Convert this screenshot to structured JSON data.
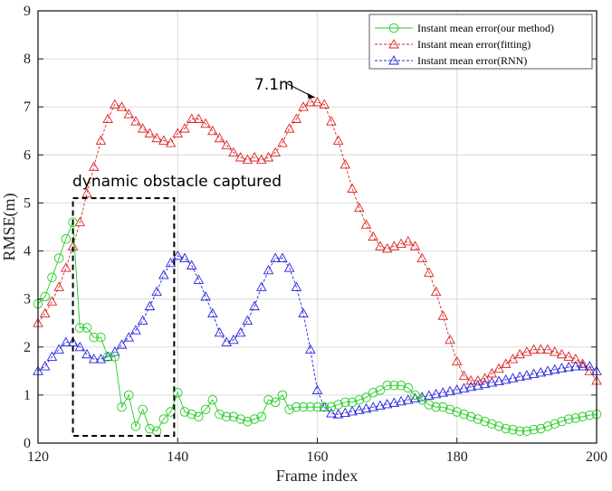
{
  "chart_data": {
    "type": "line",
    "xlabel": "Frame index",
    "ylabel": "RMSE(m)",
    "xlim": [
      120,
      200
    ],
    "ylim": [
      0,
      9
    ],
    "xticks": [
      120,
      140,
      160,
      180,
      200
    ],
    "yticks": [
      0,
      1,
      2,
      3,
      4,
      5,
      6,
      7,
      8,
      9
    ],
    "grid": true,
    "legend_position": "top-right",
    "x_start": 120,
    "series": [
      {
        "name": "Instant mean error(our method)",
        "color": "#22cc22",
        "marker": "circle",
        "line": "solid",
        "values": [
          2.9,
          3.05,
          3.45,
          3.85,
          4.25,
          4.6,
          2.4,
          2.4,
          2.2,
          2.2,
          1.8,
          1.8,
          0.75,
          1.0,
          0.35,
          0.7,
          0.3,
          0.25,
          0.5,
          0.65,
          1.05,
          0.65,
          0.6,
          0.55,
          0.7,
          0.9,
          0.6,
          0.55,
          0.55,
          0.5,
          0.45,
          0.5,
          0.55,
          0.9,
          0.85,
          1.0,
          0.7,
          0.75,
          0.75,
          0.75,
          0.75,
          0.75,
          0.75,
          0.8,
          0.85,
          0.85,
          0.9,
          0.95,
          1.05,
          1.1,
          1.2,
          1.2,
          1.2,
          1.15,
          1.0,
          0.9,
          0.8,
          0.75,
          0.75,
          0.7,
          0.65,
          0.6,
          0.55,
          0.5,
          0.45,
          0.4,
          0.35,
          0.3,
          0.28,
          0.25,
          0.25,
          0.28,
          0.3,
          0.35,
          0.4,
          0.45,
          0.5,
          0.52,
          0.55,
          0.58,
          0.6
        ]
      },
      {
        "name": "Instant mean error(fitting)",
        "color": "#dd2222",
        "marker": "triangle",
        "line": "dashed",
        "values": [
          2.5,
          2.7,
          2.95,
          3.25,
          3.65,
          4.1,
          4.6,
          5.2,
          5.75,
          6.3,
          6.75,
          7.05,
          7.0,
          6.85,
          6.7,
          6.55,
          6.45,
          6.35,
          6.3,
          6.25,
          6.45,
          6.55,
          6.75,
          6.75,
          6.65,
          6.5,
          6.35,
          6.2,
          6.05,
          5.95,
          5.9,
          5.95,
          5.9,
          5.95,
          6.05,
          6.25,
          6.55,
          6.75,
          7.0,
          7.1,
          7.1,
          7.05,
          6.7,
          6.3,
          5.8,
          5.3,
          4.9,
          4.55,
          4.3,
          4.1,
          4.05,
          4.1,
          4.15,
          4.2,
          4.1,
          3.85,
          3.55,
          3.15,
          2.65,
          2.15,
          1.7,
          1.4,
          1.3,
          1.3,
          1.35,
          1.45,
          1.55,
          1.65,
          1.75,
          1.85,
          1.9,
          1.95,
          1.95,
          1.95,
          1.9,
          1.85,
          1.8,
          1.75,
          1.65,
          1.5,
          1.3
        ]
      },
      {
        "name": "Instant mean error(RNN)",
        "color": "#2222dd",
        "marker": "triangle",
        "line": "dashed",
        "values": [
          1.5,
          1.6,
          1.8,
          1.95,
          2.1,
          2.1,
          2.0,
          1.85,
          1.75,
          1.75,
          1.8,
          1.9,
          2.05,
          2.2,
          2.35,
          2.55,
          2.85,
          3.15,
          3.5,
          3.75,
          3.9,
          3.85,
          3.7,
          3.4,
          3.05,
          2.7,
          2.3,
          2.1,
          2.15,
          2.3,
          2.55,
          2.85,
          3.25,
          3.6,
          3.85,
          3.85,
          3.65,
          3.25,
          2.7,
          1.95,
          1.1,
          0.75,
          0.62,
          0.6,
          0.63,
          0.66,
          0.69,
          0.72,
          0.75,
          0.78,
          0.81,
          0.84,
          0.87,
          0.9,
          0.93,
          0.96,
          0.99,
          1.02,
          1.05,
          1.08,
          1.11,
          1.14,
          1.17,
          1.2,
          1.23,
          1.26,
          1.29,
          1.32,
          1.35,
          1.38,
          1.41,
          1.44,
          1.47,
          1.5,
          1.53,
          1.56,
          1.58,
          1.6,
          1.6,
          1.6,
          1.5
        ]
      }
    ],
    "annotations": [
      {
        "text": "7.1m",
        "points_to": [
          160,
          7.1
        ]
      },
      {
        "text": "dynamic obstacle captured",
        "box": {
          "x": [
            125,
            139.5
          ],
          "y": [
            0.15,
            5.1
          ]
        }
      }
    ]
  }
}
